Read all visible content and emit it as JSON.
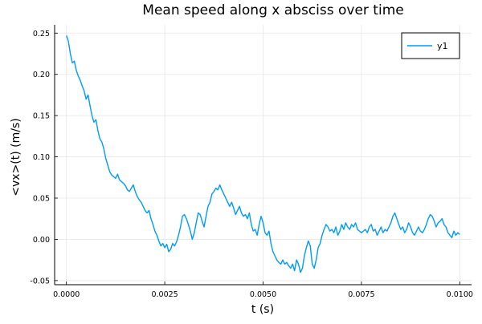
{
  "chart_data": {
    "type": "line",
    "title": "Mean speed along x absciss over time",
    "xlabel": "t (s)",
    "ylabel": "<vx>(t) (m/s)",
    "xlim": [
      -0.0003,
      0.0103
    ],
    "ylim": [
      -0.055,
      0.26
    ],
    "x_ticks": [
      0.0,
      0.0025,
      0.005,
      0.0075,
      0.01
    ],
    "x_tick_labels": [
      "0.0000",
      "0.0025",
      "0.0050",
      "0.0075",
      "0.0100"
    ],
    "y_ticks": [
      -0.05,
      0.0,
      0.05,
      0.1,
      0.15,
      0.2,
      0.25
    ],
    "y_tick_labels": [
      "-0.05",
      "0.00",
      "0.05",
      "0.10",
      "0.15",
      "0.20",
      "0.25"
    ],
    "grid": true,
    "legend": {
      "position": "top-right",
      "entries": [
        "y1"
      ]
    },
    "series": [
      {
        "name": "y1",
        "color": "#009af9",
        "points": [
          [
            0.0,
            0.247
          ],
          [
            5e-05,
            0.24
          ],
          [
            0.0001,
            0.225
          ],
          [
            0.00015,
            0.214
          ],
          [
            0.0002,
            0.216
          ],
          [
            0.00025,
            0.205
          ],
          [
            0.0003,
            0.198
          ],
          [
            0.00035,
            0.193
          ],
          [
            0.0004,
            0.186
          ],
          [
            0.00045,
            0.18
          ],
          [
            0.0005,
            0.17
          ],
          [
            0.00055,
            0.175
          ],
          [
            0.0006,
            0.162
          ],
          [
            0.00065,
            0.15
          ],
          [
            0.0007,
            0.142
          ],
          [
            0.00075,
            0.145
          ],
          [
            0.0008,
            0.132
          ],
          [
            0.00085,
            0.122
          ],
          [
            0.0009,
            0.118
          ],
          [
            0.00095,
            0.11
          ],
          [
            0.001,
            0.098
          ],
          [
            0.00105,
            0.09
          ],
          [
            0.0011,
            0.082
          ],
          [
            0.00115,
            0.078
          ],
          [
            0.0012,
            0.076
          ],
          [
            0.00125,
            0.074
          ],
          [
            0.0013,
            0.079
          ],
          [
            0.00135,
            0.072
          ],
          [
            0.0014,
            0.07
          ],
          [
            0.00145,
            0.068
          ],
          [
            0.0015,
            0.065
          ],
          [
            0.00155,
            0.06
          ],
          [
            0.0016,
            0.058
          ],
          [
            0.00165,
            0.062
          ],
          [
            0.0017,
            0.066
          ],
          [
            0.00175,
            0.058
          ],
          [
            0.0018,
            0.052
          ],
          [
            0.00185,
            0.048
          ],
          [
            0.0019,
            0.045
          ],
          [
            0.00195,
            0.04
          ],
          [
            0.002,
            0.035
          ],
          [
            0.00205,
            0.032
          ],
          [
            0.0021,
            0.035
          ],
          [
            0.00215,
            0.025
          ],
          [
            0.0022,
            0.018
          ],
          [
            0.00225,
            0.01
          ],
          [
            0.0023,
            0.005
          ],
          [
            0.00235,
            -0.002
          ],
          [
            0.0024,
            -0.008
          ],
          [
            0.00245,
            -0.005
          ],
          [
            0.0025,
            -0.01
          ],
          [
            0.00255,
            -0.006
          ],
          [
            0.0026,
            -0.015
          ],
          [
            0.00265,
            -0.012
          ],
          [
            0.0027,
            -0.005
          ],
          [
            0.00275,
            -0.008
          ],
          [
            0.0028,
            -0.003
          ],
          [
            0.00285,
            0.005
          ],
          [
            0.0029,
            0.015
          ],
          [
            0.00295,
            0.028
          ],
          [
            0.003,
            0.03
          ],
          [
            0.00305,
            0.025
          ],
          [
            0.0031,
            0.018
          ],
          [
            0.00315,
            0.01
          ],
          [
            0.0032,
            0.0
          ],
          [
            0.00325,
            0.008
          ],
          [
            0.0033,
            0.02
          ],
          [
            0.00335,
            0.032
          ],
          [
            0.0034,
            0.03
          ],
          [
            0.00345,
            0.022
          ],
          [
            0.0035,
            0.015
          ],
          [
            0.00355,
            0.028
          ],
          [
            0.0036,
            0.04
          ],
          [
            0.00365,
            0.045
          ],
          [
            0.0037,
            0.055
          ],
          [
            0.00375,
            0.058
          ],
          [
            0.0038,
            0.062
          ],
          [
            0.00385,
            0.06
          ],
          [
            0.0039,
            0.066
          ],
          [
            0.00395,
            0.06
          ],
          [
            0.004,
            0.055
          ],
          [
            0.00405,
            0.05
          ],
          [
            0.0041,
            0.045
          ],
          [
            0.00415,
            0.04
          ],
          [
            0.0042,
            0.045
          ],
          [
            0.00425,
            0.038
          ],
          [
            0.0043,
            0.03
          ],
          [
            0.00435,
            0.035
          ],
          [
            0.0044,
            0.04
          ],
          [
            0.00445,
            0.032
          ],
          [
            0.0045,
            0.028
          ],
          [
            0.00455,
            0.03
          ],
          [
            0.0046,
            0.025
          ],
          [
            0.00465,
            0.032
          ],
          [
            0.0047,
            0.018
          ],
          [
            0.00475,
            0.01
          ],
          [
            0.0048,
            0.012
          ],
          [
            0.00485,
            0.005
          ],
          [
            0.0049,
            0.018
          ],
          [
            0.00495,
            0.028
          ],
          [
            0.005,
            0.02
          ],
          [
            0.00505,
            0.008
          ],
          [
            0.0051,
            0.005
          ],
          [
            0.00515,
            0.01
          ],
          [
            0.0052,
            -0.005
          ],
          [
            0.00525,
            -0.015
          ],
          [
            0.0053,
            -0.02
          ],
          [
            0.00535,
            -0.025
          ],
          [
            0.0054,
            -0.028
          ],
          [
            0.00545,
            -0.03
          ],
          [
            0.0055,
            -0.025
          ],
          [
            0.00555,
            -0.03
          ],
          [
            0.0056,
            -0.028
          ],
          [
            0.00565,
            -0.032
          ],
          [
            0.0057,
            -0.035
          ],
          [
            0.00575,
            -0.03
          ],
          [
            0.0058,
            -0.038
          ],
          [
            0.00585,
            -0.025
          ],
          [
            0.0059,
            -0.03
          ],
          [
            0.00595,
            -0.04
          ],
          [
            0.006,
            -0.035
          ],
          [
            0.00605,
            -0.02
          ],
          [
            0.0061,
            -0.01
          ],
          [
            0.00615,
            -0.002
          ],
          [
            0.0062,
            -0.008
          ],
          [
            0.00625,
            -0.03
          ],
          [
            0.0063,
            -0.035
          ],
          [
            0.00635,
            -0.025
          ],
          [
            0.0064,
            -0.01
          ],
          [
            0.00645,
            -0.005
          ],
          [
            0.0065,
            0.005
          ],
          [
            0.00655,
            0.012
          ],
          [
            0.0066,
            0.018
          ],
          [
            0.00665,
            0.015
          ],
          [
            0.0067,
            0.01
          ],
          [
            0.00675,
            0.012
          ],
          [
            0.0068,
            0.008
          ],
          [
            0.00685,
            0.015
          ],
          [
            0.0069,
            0.005
          ],
          [
            0.00695,
            0.01
          ],
          [
            0.007,
            0.018
          ],
          [
            0.00705,
            0.012
          ],
          [
            0.0071,
            0.02
          ],
          [
            0.00715,
            0.015
          ],
          [
            0.0072,
            0.012
          ],
          [
            0.00725,
            0.018
          ],
          [
            0.0073,
            0.015
          ],
          [
            0.00735,
            0.02
          ],
          [
            0.0074,
            0.012
          ],
          [
            0.00745,
            0.01
          ],
          [
            0.0075,
            0.008
          ],
          [
            0.00755,
            0.01
          ],
          [
            0.0076,
            0.012
          ],
          [
            0.00765,
            0.008
          ],
          [
            0.0077,
            0.015
          ],
          [
            0.00775,
            0.018
          ],
          [
            0.0078,
            0.01
          ],
          [
            0.00785,
            0.012
          ],
          [
            0.0079,
            0.005
          ],
          [
            0.00795,
            0.01
          ],
          [
            0.008,
            0.015
          ],
          [
            0.00805,
            0.008
          ],
          [
            0.0081,
            0.012
          ],
          [
            0.00815,
            0.01
          ],
          [
            0.0082,
            0.015
          ],
          [
            0.00825,
            0.02
          ],
          [
            0.0083,
            0.028
          ],
          [
            0.00835,
            0.032
          ],
          [
            0.0084,
            0.025
          ],
          [
            0.00845,
            0.018
          ],
          [
            0.0085,
            0.012
          ],
          [
            0.00855,
            0.015
          ],
          [
            0.0086,
            0.008
          ],
          [
            0.00865,
            0.012
          ],
          [
            0.0087,
            0.02
          ],
          [
            0.00875,
            0.015
          ],
          [
            0.0088,
            0.008
          ],
          [
            0.00885,
            0.005
          ],
          [
            0.0089,
            0.01
          ],
          [
            0.00895,
            0.015
          ],
          [
            0.009,
            0.01
          ],
          [
            0.00905,
            0.008
          ],
          [
            0.0091,
            0.012
          ],
          [
            0.00915,
            0.018
          ],
          [
            0.0092,
            0.025
          ],
          [
            0.00925,
            0.03
          ],
          [
            0.0093,
            0.028
          ],
          [
            0.00935,
            0.022
          ],
          [
            0.0094,
            0.015
          ],
          [
            0.00945,
            0.02
          ],
          [
            0.0095,
            0.022
          ],
          [
            0.00955,
            0.025
          ],
          [
            0.0096,
            0.018
          ],
          [
            0.00965,
            0.015
          ],
          [
            0.0097,
            0.008
          ],
          [
            0.00975,
            0.005
          ],
          [
            0.0098,
            0.002
          ],
          [
            0.00985,
            0.01
          ],
          [
            0.0099,
            0.005
          ],
          [
            0.00995,
            0.008
          ],
          [
            0.01,
            0.006
          ]
        ]
      }
    ]
  }
}
